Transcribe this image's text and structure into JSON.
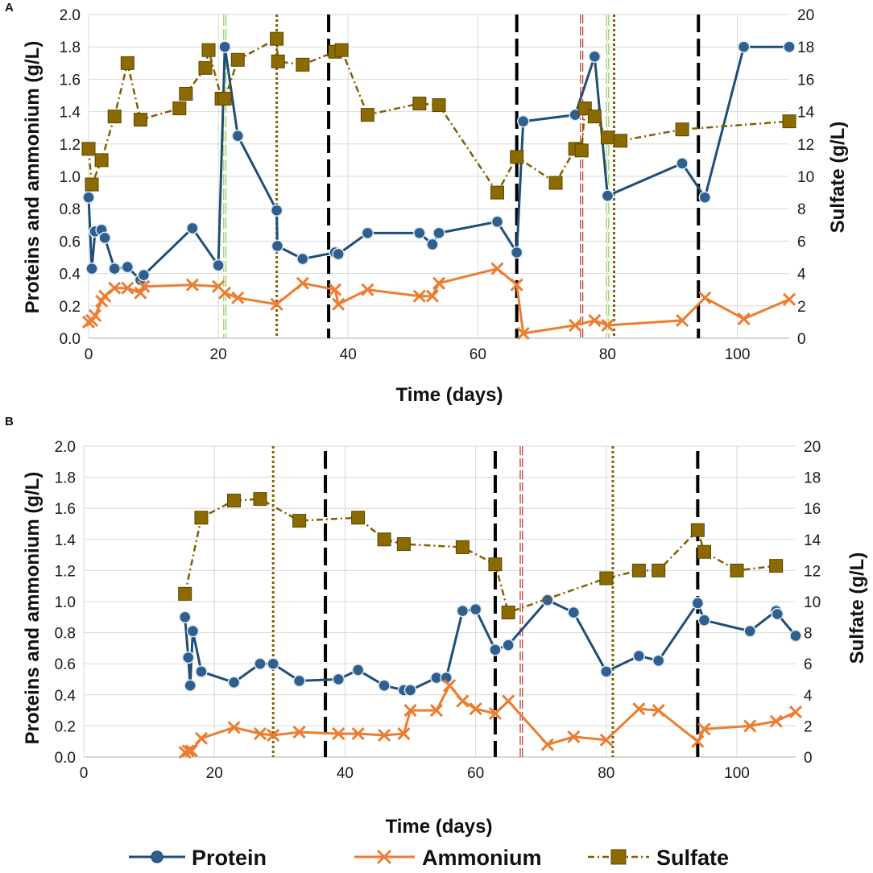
{
  "colors": {
    "protein": "#1f4e79",
    "protein_fill": "#2e5f8f",
    "ammonium": "#ed7d31",
    "sulfate": "#7f6000",
    "sulfate_fill": "#8b6b00",
    "grid": "#d9d9d9",
    "black_line": "#000000",
    "olive_line": "#7f6000",
    "red_line": "#c0392b",
    "green_line": "#92d050"
  },
  "legend": {
    "protein": "Protein",
    "ammonium": "Ammonium",
    "sulfate": "Sulfate"
  },
  "chart_data": [
    {
      "panel": "A",
      "type": "line",
      "xlabel": "Time (days)",
      "ylabel_left": "Proteins and ammonium (g/L)",
      "ylabel_right": "Sulfate (g/L)",
      "xlim": [
        0,
        108
      ],
      "ylim_left": [
        0,
        2.0
      ],
      "ylim_right": [
        0,
        20
      ],
      "x_ticks": [
        0,
        20,
        40,
        60,
        80,
        100
      ],
      "y_ticks_left": [
        "0.0",
        "0.2",
        "0.4",
        "0.6",
        "0.8",
        "1.0",
        "1.2",
        "1.4",
        "1.6",
        "1.8",
        "2.0"
      ],
      "y_ticks_right": [
        "0",
        "2",
        "4",
        "6",
        "8",
        "10",
        "12",
        "14",
        "16",
        "18",
        "20"
      ],
      "grid": true,
      "vertical_lines": [
        {
          "x": 21,
          "style": "green-outline"
        },
        {
          "x": 29,
          "style": "olive-dotted"
        },
        {
          "x": 37,
          "style": "black-dashed"
        },
        {
          "x": 66,
          "style": "black-dashed"
        },
        {
          "x": 76,
          "style": "red-outline"
        },
        {
          "x": 80,
          "style": "green-outline"
        },
        {
          "x": 81,
          "style": "olive-dotted"
        },
        {
          "x": 94,
          "style": "black-dashed"
        }
      ],
      "series": [
        {
          "name": "Protein",
          "axis": "left",
          "x": [
            0,
            0.5,
            1,
            2,
            2.5,
            4,
            6,
            8,
            8.5,
            16,
            20,
            21,
            23,
            29,
            29.1,
            33,
            38,
            38.5,
            43,
            51,
            53,
            54,
            63,
            66,
            67,
            75,
            78,
            80,
            91.5,
            95,
            101,
            108
          ],
          "y": [
            0.87,
            0.43,
            0.66,
            0.67,
            0.62,
            0.43,
            0.44,
            0.36,
            0.39,
            0.68,
            0.45,
            1.8,
            1.25,
            0.79,
            0.57,
            0.49,
            0.53,
            0.52,
            0.65,
            0.65,
            0.58,
            0.65,
            0.72,
            0.53,
            1.34,
            1.38,
            1.74,
            0.88,
            1.08,
            0.87,
            1.8,
            1.8
          ]
        },
        {
          "name": "Ammonium",
          "axis": "left",
          "x": [
            0,
            0.5,
            1,
            2,
            2.5,
            4,
            6,
            8,
            8.5,
            16,
            20,
            21,
            23,
            29,
            33,
            38,
            38.5,
            43,
            51,
            53,
            54,
            63,
            66,
            67,
            75,
            78,
            80,
            91.5,
            95,
            101,
            108
          ],
          "y": [
            0.1,
            0.11,
            0.14,
            0.23,
            0.26,
            0.31,
            0.31,
            0.28,
            0.32,
            0.33,
            0.32,
            0.28,
            0.25,
            0.21,
            0.34,
            0.3,
            0.21,
            0.3,
            0.26,
            0.26,
            0.34,
            0.43,
            0.33,
            0.03,
            0.08,
            0.11,
            0.08,
            0.11,
            0.25,
            0.12,
            0.24
          ]
        },
        {
          "name": "Sulfate",
          "axis": "right",
          "x": [
            0,
            0.5,
            2,
            4,
            6,
            8,
            14,
            15,
            18,
            18.5,
            20.5,
            21,
            23,
            29,
            29.2,
            33,
            38,
            39,
            43,
            51,
            54,
            63,
            66,
            72,
            75,
            76,
            76.5,
            78,
            80,
            82,
            91.5,
            108
          ],
          "y": [
            11.7,
            9.5,
            11.0,
            13.7,
            17.0,
            13.5,
            14.2,
            15.1,
            16.7,
            17.8,
            14.8,
            14.8,
            17.2,
            18.5,
            17.1,
            16.9,
            17.7,
            17.8,
            13.8,
            14.5,
            14.4,
            9.0,
            11.2,
            9.6,
            11.7,
            11.6,
            14.2,
            13.7,
            12.4,
            12.2,
            12.9,
            13.4
          ]
        }
      ]
    },
    {
      "panel": "B",
      "type": "line",
      "xlabel": "Time (days)",
      "ylabel_left": "Proteins and ammonium (g/L)",
      "ylabel_right": "Sulfate (g/L)",
      "xlim": [
        0,
        109
      ],
      "ylim_left": [
        0,
        2.0
      ],
      "ylim_right": [
        0,
        20
      ],
      "x_ticks": [
        0,
        20,
        40,
        60,
        80,
        100
      ],
      "y_ticks_left": [
        "0.0",
        "0.2",
        "0.4",
        "0.6",
        "0.8",
        "1.0",
        "1.2",
        "1.4",
        "1.6",
        "1.8",
        "2.0"
      ],
      "y_ticks_right": [
        "0",
        "2",
        "4",
        "6",
        "8",
        "10",
        "12",
        "14",
        "16",
        "18",
        "20"
      ],
      "grid": true,
      "vertical_lines": [
        {
          "x": 29,
          "style": "olive-dotted"
        },
        {
          "x": 37,
          "style": "black-dashed"
        },
        {
          "x": 63,
          "style": "black-dashed"
        },
        {
          "x": 67,
          "style": "red-outline"
        },
        {
          "x": 81,
          "style": "olive-dotted"
        },
        {
          "x": 94,
          "style": "black-dashed"
        }
      ],
      "series": [
        {
          "name": "Protein",
          "axis": "left",
          "x": [
            15.5,
            16,
            16.3,
            16.7,
            18,
            23,
            27,
            29,
            33,
            39,
            42,
            46,
            49,
            50,
            54,
            55.5,
            58,
            60,
            63,
            65,
            71,
            75,
            80,
            85,
            88,
            94,
            95,
            102,
            106,
            106.2,
            109
          ],
          "y": [
            0.9,
            0.64,
            0.46,
            0.81,
            0.55,
            0.48,
            0.6,
            0.6,
            0.49,
            0.5,
            0.56,
            0.46,
            0.43,
            0.43,
            0.51,
            0.51,
            0.94,
            0.95,
            0.69,
            0.72,
            1.01,
            0.93,
            0.55,
            0.65,
            0.62,
            0.99,
            0.88,
            0.81,
            0.94,
            0.92,
            0.78
          ]
        },
        {
          "name": "Ammonium",
          "axis": "left",
          "x": [
            15.5,
            16,
            16.5,
            18,
            23,
            27,
            29,
            33,
            39,
            42,
            46,
            49,
            50,
            54,
            56,
            58,
            60,
            63,
            65,
            71,
            75,
            80,
            85,
            88,
            94,
            95,
            102,
            106,
            109
          ],
          "y": [
            0.03,
            0.04,
            0.04,
            0.12,
            0.19,
            0.15,
            0.14,
            0.16,
            0.15,
            0.15,
            0.14,
            0.15,
            0.3,
            0.3,
            0.46,
            0.36,
            0.31,
            0.28,
            0.36,
            0.08,
            0.13,
            0.11,
            0.31,
            0.3,
            0.1,
            0.18,
            0.2,
            0.23,
            0.29
          ]
        },
        {
          "name": "Sulfate",
          "axis": "right",
          "x": [
            15.5,
            18,
            23,
            27,
            33,
            42,
            46,
            49,
            58,
            63,
            65,
            80,
            85,
            88,
            94,
            95,
            100,
            106
          ],
          "y": [
            10.5,
            15.4,
            16.5,
            16.6,
            15.2,
            15.4,
            14.0,
            13.7,
            13.5,
            12.4,
            9.3,
            11.5,
            12.0,
            12.0,
            14.6,
            13.2,
            12.0,
            12.3
          ]
        }
      ]
    }
  ]
}
